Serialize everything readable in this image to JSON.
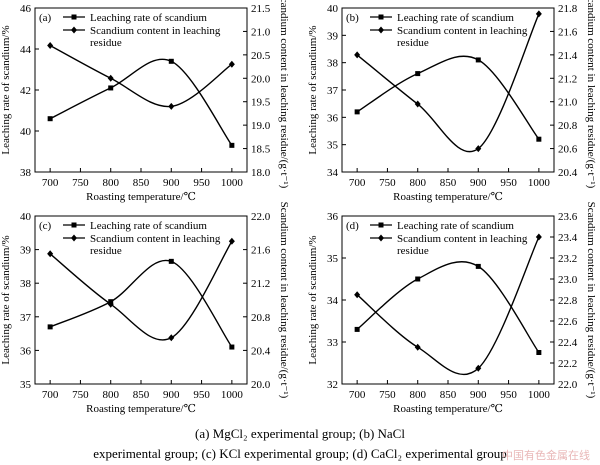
{
  "chart_data": [
    {
      "type": "line",
      "panel_label": "(a)",
      "x": [
        700,
        800,
        900,
        1000
      ],
      "xlabel": "Roasting temperature/℃",
      "xticks": [
        "700",
        "750",
        "800",
        "850",
        "900",
        "950",
        "1000"
      ],
      "xlim": [
        675,
        1025
      ],
      "series": [
        {
          "name": "Leaching rate of scandium",
          "axis": "left",
          "marker": "square",
          "values": [
            40.6,
            42.1,
            43.4,
            39.3
          ]
        },
        {
          "name": "Scandium content in leaching residue",
          "axis": "right",
          "marker": "diamond",
          "values": [
            20.7,
            20.0,
            19.4,
            20.3
          ]
        }
      ],
      "ylabel_left": "Leaching rate of scandium/%",
      "ylabel_right": "Scandium content in leaching residue/(g·t⁻¹)",
      "ylim_left": [
        38,
        46
      ],
      "yticks_left": [
        "38",
        "40",
        "42",
        "44",
        "46"
      ],
      "ylim_right": [
        18.0,
        21.5
      ],
      "yticks_right": [
        "18.0",
        "18.5",
        "19.0",
        "19.5",
        "20.0",
        "20.5",
        "21.0",
        "21.5"
      ]
    },
    {
      "type": "line",
      "panel_label": "(b)",
      "x": [
        700,
        800,
        900,
        1000
      ],
      "xlabel": "Roasting temperature/℃",
      "xticks": [
        "700",
        "750",
        "800",
        "850",
        "900",
        "950",
        "1000"
      ],
      "xlim": [
        675,
        1025
      ],
      "series": [
        {
          "name": "Leaching rate of scandium",
          "axis": "left",
          "marker": "square",
          "values": [
            36.2,
            37.6,
            38.1,
            35.2
          ]
        },
        {
          "name": "Scandium content in leaching residue",
          "axis": "right",
          "marker": "diamond",
          "values": [
            21.4,
            20.98,
            20.6,
            21.75
          ]
        }
      ],
      "ylabel_left": "Leaching rate of scandium/%",
      "ylabel_right": "Scandium content in leaching residue/(g·t⁻¹)",
      "ylim_left": [
        34,
        40
      ],
      "yticks_left": [
        "34",
        "35",
        "36",
        "37",
        "38",
        "39",
        "40"
      ],
      "ylim_right": [
        20.4,
        21.8
      ],
      "yticks_right": [
        "20.4",
        "20.6",
        "20.8",
        "21.0",
        "21.2",
        "21.4",
        "21.6",
        "21.8"
      ]
    },
    {
      "type": "line",
      "panel_label": "(c)",
      "x": [
        700,
        800,
        900,
        1000
      ],
      "xlabel": "Roasting temperature/℃",
      "xticks": [
        "700",
        "750",
        "800",
        "850",
        "900",
        "950",
        "1000"
      ],
      "xlim": [
        675,
        1025
      ],
      "series": [
        {
          "name": "Leaching rate of scandium",
          "axis": "left",
          "marker": "square",
          "values": [
            36.7,
            37.45,
            38.65,
            36.1
          ]
        },
        {
          "name": "Scandium content in leaching residue",
          "axis": "right",
          "marker": "diamond",
          "values": [
            21.55,
            20.95,
            20.55,
            21.7
          ]
        }
      ],
      "ylabel_left": "Leaching rate of scandium/%",
      "ylabel_right": "Scandium content in leaching residue/(g·t⁻¹)",
      "ylim_left": [
        35,
        40
      ],
      "yticks_left": [
        "35",
        "36",
        "37",
        "38",
        "39",
        "40"
      ],
      "ylim_right": [
        20.0,
        22.0
      ],
      "yticks_right": [
        "20.0",
        "20.4",
        "20.8",
        "21.2",
        "21.6",
        "22.0"
      ]
    },
    {
      "type": "line",
      "panel_label": "(d)",
      "x": [
        700,
        800,
        900,
        1000
      ],
      "xlabel": "Roasting temperature/℃",
      "xticks": [
        "700",
        "750",
        "800",
        "850",
        "900",
        "950",
        "1000"
      ],
      "xlim": [
        675,
        1025
      ],
      "series": [
        {
          "name": "Leaching rate of scandium",
          "axis": "left",
          "marker": "square",
          "values": [
            33.3,
            34.5,
            34.8,
            32.75
          ]
        },
        {
          "name": "Scandium content in leaching residue",
          "axis": "right",
          "marker": "diamond",
          "values": [
            22.85,
            22.35,
            22.15,
            23.4
          ]
        }
      ],
      "ylabel_left": "Leaching rate of scandium/%",
      "ylabel_right": "Scandium content in leaching residue/(g·t⁻¹)",
      "ylim_left": [
        32,
        36
      ],
      "yticks_left": [
        "32",
        "33",
        "34",
        "35",
        "36"
      ],
      "ylim_right": [
        22.0,
        23.6
      ],
      "yticks_right": [
        "22.0",
        "22.2",
        "22.4",
        "22.6",
        "22.8",
        "23.0",
        "23.2",
        "23.4",
        "23.6"
      ]
    }
  ],
  "caption": {
    "line1": "(a) MgCl₂ experimental group; (b) NaCl",
    "line2": "experimental group; (c) KCl experimental group; (d) CaCl₂ experimental group"
  },
  "watermark": "中国有色金属在线"
}
